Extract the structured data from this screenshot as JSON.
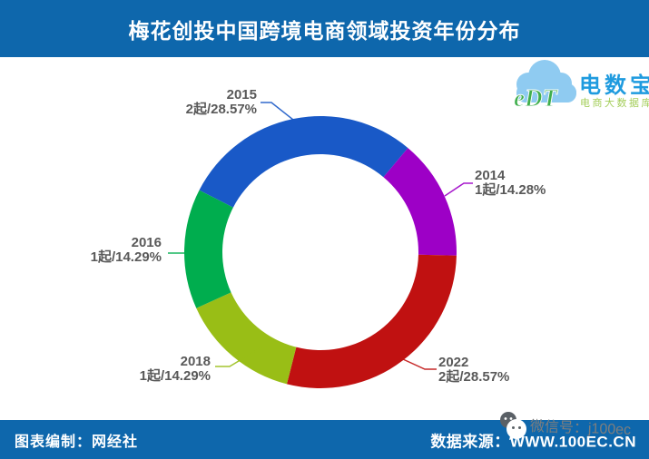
{
  "header": {
    "title": "梅花创投中国跨境电商领域投资年份分布",
    "bar_color": "#0E67AC"
  },
  "logo": {
    "cloud_text": "eDT",
    "brand": "电数宝",
    "tagline": "电商大数据库",
    "cloud_color": "#8FCBF1",
    "cloud_text_color": "#3FAE4C",
    "brand_color": "#1F9BDF",
    "tagline_color": "#A5CE5B"
  },
  "chart_data": {
    "type": "pie",
    "subtype": "donut",
    "title": "梅花创投中国跨境电商领域投资年份分布",
    "unit": "起",
    "total_deals": 7,
    "start_angle_deg": -62.86,
    "direction": "clockwise",
    "label_color": "#595959",
    "legend_position": "none",
    "segments": [
      {
        "year": "2015",
        "count": 2,
        "label": "2起/28.57%",
        "percent": 28.57,
        "color": "#1959C7"
      },
      {
        "year": "2014",
        "count": 1,
        "label": "1起/14.28%",
        "percent": 14.28,
        "color": "#9D00C6"
      },
      {
        "year": "2022",
        "count": 2,
        "label": "2起/28.57%",
        "percent": 28.57,
        "color": "#C01111"
      },
      {
        "year": "2018",
        "count": 1,
        "label": "1起/14.29%",
        "percent": 14.29,
        "color": "#99BE16"
      },
      {
        "year": "2016",
        "count": 1,
        "label": "1起/14.29%",
        "percent": 14.29,
        "color": "#00AD4E"
      }
    ]
  },
  "footer": {
    "left": "图表编制：网经社",
    "right": "数据来源：WWW.100EC.CN",
    "bar_color": "#0E67AC"
  },
  "watermark": {
    "icon": "wechat-icon",
    "text": "微信号：j100ec",
    "text_color": "#7E7E7E"
  }
}
